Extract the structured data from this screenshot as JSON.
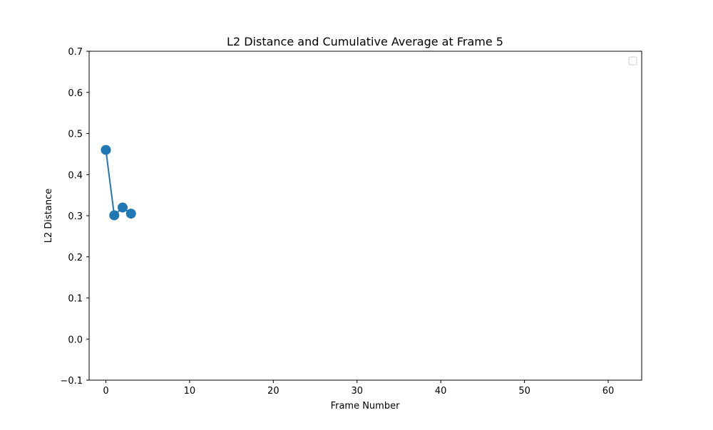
{
  "chart_data": {
    "type": "line",
    "title": "L2 Distance and Cumulative Average at Frame 5",
    "xlabel": "Frame Number",
    "ylabel": "L2 Distance",
    "xlim": [
      -2,
      64
    ],
    "ylim": [
      -0.1,
      0.7
    ],
    "xticks": [
      0,
      10,
      20,
      30,
      40,
      50,
      60
    ],
    "yticks": [
      -0.1,
      0.0,
      0.1,
      0.2,
      0.3,
      0.4,
      0.5,
      0.6,
      0.7
    ],
    "xtick_labels": [
      "0",
      "10",
      "20",
      "30",
      "40",
      "50",
      "60"
    ],
    "ytick_labels": [
      "−0.1",
      "0.0",
      "0.1",
      "0.2",
      "0.3",
      "0.4",
      "0.5",
      "0.6",
      "0.7"
    ],
    "grid": false,
    "legend": {
      "placement": "top-right",
      "entries": []
    },
    "series": [
      {
        "x": [
          0,
          1,
          2,
          3
        ],
        "values": [
          0.46,
          0.301,
          0.32,
          0.305
        ],
        "color": "#1f77b4",
        "marker": "circle"
      }
    ]
  }
}
